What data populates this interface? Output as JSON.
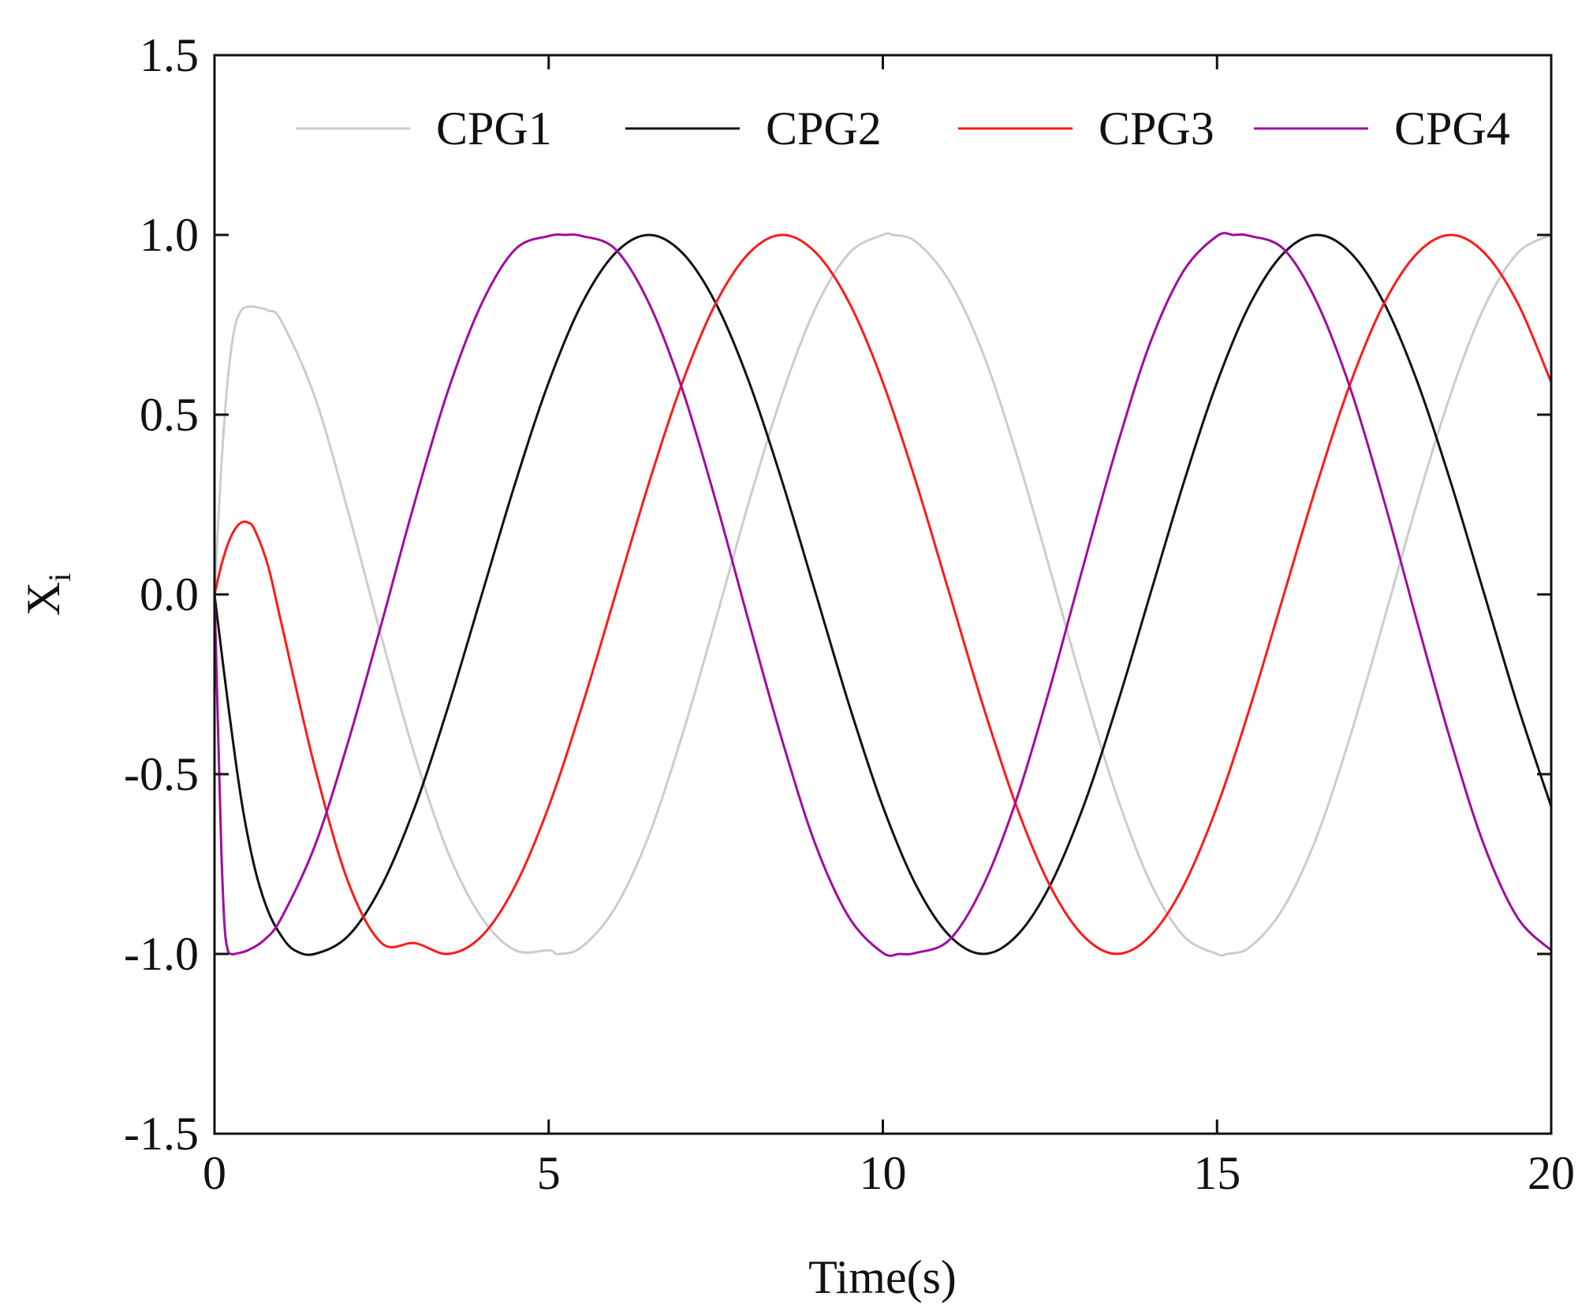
{
  "chart_data": {
    "type": "line",
    "title": "",
    "xlabel": "Time(s)",
    "ylabel": "X",
    "ylabel_sub": "i",
    "xlim": [
      0,
      20
    ],
    "ylim": [
      -1.5,
      1.5
    ],
    "xticks": [
      0,
      5,
      10,
      15,
      20
    ],
    "xtick_labels": [
      "0",
      "5",
      "10",
      "15",
      "20"
    ],
    "yticks": [
      1.5,
      1.0,
      0.5,
      0.0,
      -0.5,
      -1.0,
      -1.5
    ],
    "ytick_labels": [
      "1.5",
      "1.0",
      "0.5",
      "0.0",
      "-0.5",
      "-1.0",
      "-1.5"
    ],
    "grid": false,
    "legend_position": "top",
    "series": [
      {
        "name": "CPG1",
        "color": "#cccccc",
        "x": [
          0,
          0.1,
          0.2,
          0.3,
          0.4,
          0.5,
          0.6,
          0.8,
          1.0,
          1.5,
          2.0,
          2.5,
          3.0,
          3.5,
          4.0,
          4.5,
          5.0,
          5.15,
          5.5,
          6.0,
          6.5,
          7.0,
          7.5,
          8.0,
          8.5,
          9.0,
          9.5,
          10.0,
          10.15,
          10.5,
          11.0,
          11.5,
          12.0,
          12.5,
          13.0,
          13.5,
          14.0,
          14.5,
          15.0,
          15.15,
          15.5,
          16.0,
          16.5,
          17.0,
          17.5,
          18.0,
          18.5,
          19.0,
          19.5,
          20.0
        ],
        "y": [
          0.0,
          0.35,
          0.6,
          0.74,
          0.79,
          0.8,
          0.8,
          0.79,
          0.76,
          0.55,
          0.23,
          -0.12,
          -0.45,
          -0.72,
          -0.9,
          -0.99,
          -0.99,
          -1.0,
          -0.98,
          -0.87,
          -0.67,
          -0.39,
          -0.07,
          0.26,
          0.56,
          0.8,
          0.95,
          1.0,
          1.0,
          0.98,
          0.87,
          0.67,
          0.39,
          0.07,
          -0.26,
          -0.56,
          -0.8,
          -0.95,
          -1.0,
          -1.0,
          -0.98,
          -0.87,
          -0.67,
          -0.39,
          -0.07,
          0.26,
          0.56,
          0.8,
          0.95,
          1.0
        ]
      },
      {
        "name": "CPG2",
        "color": "#111111",
        "x": [
          0,
          0.2,
          0.4,
          0.6,
          0.8,
          1.0,
          1.2,
          1.5,
          2.0,
          2.5,
          3.0,
          3.5,
          4.0,
          4.5,
          5.0,
          5.5,
          6.0,
          6.5,
          7.0,
          7.5,
          8.0,
          8.5,
          9.0,
          9.5,
          10.0,
          10.5,
          11.0,
          11.5,
          12.0,
          12.5,
          13.0,
          13.5,
          14.0,
          14.5,
          15.0,
          15.5,
          16.0,
          16.5,
          17.0,
          17.5,
          18.0,
          18.5,
          19.0,
          19.5,
          20.0
        ],
        "y": [
          0.0,
          -0.3,
          -0.57,
          -0.76,
          -0.88,
          -0.95,
          -0.99,
          -1.0,
          -0.95,
          -0.81,
          -0.59,
          -0.31,
          0.0,
          0.31,
          0.59,
          0.81,
          0.95,
          1.0,
          0.95,
          0.81,
          0.59,
          0.31,
          0.0,
          -0.31,
          -0.59,
          -0.81,
          -0.95,
          -1.0,
          -0.95,
          -0.81,
          -0.59,
          -0.31,
          0.0,
          0.31,
          0.59,
          0.81,
          0.95,
          1.0,
          0.95,
          0.81,
          0.59,
          0.31,
          0.0,
          -0.31,
          -0.59
        ]
      },
      {
        "name": "CPG3",
        "color": "#ff1a1a",
        "x": [
          0,
          0.1,
          0.2,
          0.3,
          0.4,
          0.5,
          0.6,
          0.8,
          1.0,
          1.5,
          2.0,
          2.5,
          3.0,
          3.5,
          4.0,
          4.5,
          5.0,
          5.5,
          6.0,
          6.5,
          7.0,
          7.5,
          8.0,
          8.5,
          9.0,
          9.5,
          10.0,
          10.5,
          11.0,
          11.5,
          12.0,
          12.5,
          13.0,
          13.5,
          14.0,
          14.5,
          15.0,
          15.5,
          16.0,
          16.5,
          17.0,
          17.5,
          18.0,
          18.5,
          19.0,
          19.5,
          20.0
        ],
        "y": [
          0.0,
          0.08,
          0.14,
          0.18,
          0.2,
          0.2,
          0.18,
          0.08,
          -0.08,
          -0.48,
          -0.8,
          -0.97,
          -0.97,
          -1.0,
          -0.95,
          -0.81,
          -0.59,
          -0.31,
          0.0,
          0.31,
          0.59,
          0.81,
          0.95,
          1.0,
          0.95,
          0.81,
          0.59,
          0.31,
          0.0,
          -0.31,
          -0.59,
          -0.81,
          -0.95,
          -1.0,
          -0.95,
          -0.81,
          -0.59,
          -0.31,
          0.0,
          0.31,
          0.59,
          0.81,
          0.95,
          1.0,
          0.95,
          0.81,
          0.59
        ]
      },
      {
        "name": "CPG4",
        "color": "#a00ca0",
        "x": [
          0,
          0.05,
          0.1,
          0.15,
          0.2,
          0.25,
          0.3,
          0.5,
          0.75,
          1.0,
          1.5,
          2.0,
          2.5,
          3.0,
          3.5,
          4.0,
          4.5,
          5.0,
          5.25,
          5.5,
          6.0,
          6.5,
          7.0,
          7.5,
          8.0,
          8.5,
          9.0,
          9.5,
          10.0,
          10.25,
          10.5,
          11.0,
          11.5,
          12.0,
          12.5,
          13.0,
          13.5,
          14.0,
          14.5,
          15.0,
          15.25,
          15.5,
          16.0,
          16.5,
          17.0,
          17.5,
          18.0,
          18.5,
          19.0,
          19.5,
          20.0
        ],
        "y": [
          0.0,
          -0.35,
          -0.7,
          -0.92,
          -0.99,
          -1.0,
          -1.0,
          -0.99,
          -0.96,
          -0.9,
          -0.7,
          -0.41,
          -0.08,
          0.26,
          0.57,
          0.81,
          0.96,
          0.997,
          1.0,
          0.997,
          0.96,
          0.81,
          0.57,
          0.26,
          -0.08,
          -0.41,
          -0.7,
          -0.9,
          -0.997,
          -1.0,
          -0.997,
          -0.96,
          -0.81,
          -0.57,
          -0.26,
          0.08,
          0.41,
          0.7,
          0.9,
          0.997,
          1.0,
          0.997,
          0.96,
          0.81,
          0.57,
          0.26,
          -0.08,
          -0.41,
          -0.7,
          -0.9,
          -0.99
        ]
      }
    ]
  }
}
